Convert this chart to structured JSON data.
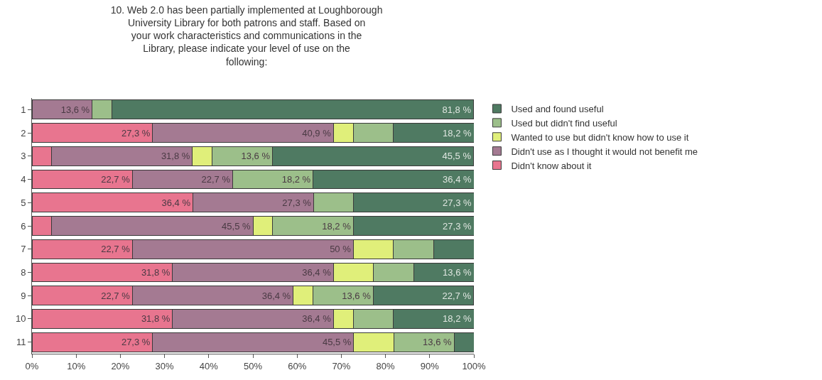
{
  "chart_data": {
    "type": "bar",
    "orientation": "horizontal",
    "stacked": true,
    "title": "10. Web 2.0 has been partially implemented at Loughborough University Library for both patrons and staff. Based on your work characteristics and communications in the Library, please indicate your level of use on the following:",
    "categories": [
      "1",
      "2",
      "3",
      "4",
      "5",
      "6",
      "7",
      "8",
      "9",
      "10",
      "11"
    ],
    "series": [
      {
        "name": "Didn't know about it",
        "color": "#e8758f",
        "values": [
          0,
          27.3,
          4.5,
          22.7,
          36.4,
          4.5,
          22.7,
          31.8,
          22.7,
          31.8,
          27.3
        ],
        "value_labels": [
          null,
          "27,3 %",
          null,
          "22,7 %",
          "36,4 %",
          null,
          "22,7 %",
          "31,8 %",
          "22,7 %",
          "31,8 %",
          "27,3 %"
        ]
      },
      {
        "name": "Didn't use as I thought it would not benefit me",
        "color": "#a47a92",
        "values": [
          13.6,
          40.9,
          31.8,
          22.7,
          27.3,
          45.5,
          50,
          36.4,
          36.4,
          36.4,
          45.5
        ],
        "value_labels": [
          "13,6 %",
          "40,9 %",
          "31,8 %",
          "22,7 %",
          "27,3 %",
          "45,5 %",
          "50 %",
          "36,4 %",
          "36,4 %",
          "36,4 %",
          "45,5 %"
        ]
      },
      {
        "name": "Wanted to use but didn't know how to use it",
        "color": "#e0ef7a",
        "values": [
          0,
          4.5,
          4.5,
          0,
          0,
          4.5,
          9.1,
          9.1,
          4.5,
          4.5,
          9.1
        ],
        "value_labels": [
          null,
          null,
          null,
          null,
          null,
          null,
          null,
          null,
          null,
          null,
          null
        ]
      },
      {
        "name": "Used but didn't find useful",
        "color": "#9cbf8a",
        "values": [
          4.5,
          9.1,
          13.6,
          18.2,
          9.0,
          18.2,
          9.1,
          9.1,
          13.6,
          9.1,
          13.6
        ],
        "value_labels": [
          null,
          null,
          "13,6 %",
          "18,2 %",
          null,
          "18,2 %",
          null,
          null,
          "13,6 %",
          null,
          "13,6 %"
        ]
      },
      {
        "name": "Used and found useful",
        "color": "#4f7a62",
        "values": [
          81.8,
          18.2,
          45.5,
          36.4,
          27.3,
          27.3,
          9.1,
          13.6,
          22.7,
          18.2,
          4.5
        ],
        "value_labels": [
          "81,8 %",
          "18,2 %",
          "45,5 %",
          "36,4 %",
          "27,3 %",
          "27,3 %",
          null,
          "13,6 %",
          "22,7 %",
          "18,2 %",
          null
        ]
      }
    ],
    "xlim": [
      0,
      100
    ],
    "xticks": [
      {
        "value": 0,
        "label": "0%"
      },
      {
        "value": 10,
        "label": "10%"
      },
      {
        "value": 20,
        "label": "20%"
      },
      {
        "value": 30,
        "label": "30%"
      },
      {
        "value": 40,
        "label": "40%"
      },
      {
        "value": 50,
        "label": "50%"
      },
      {
        "value": 60,
        "label": "60%"
      },
      {
        "value": 70,
        "label": "70%"
      },
      {
        "value": 80,
        "label": "80%"
      },
      {
        "value": 90,
        "label": "90%"
      },
      {
        "value": 100,
        "label": "100%"
      }
    ],
    "legend": "right"
  }
}
